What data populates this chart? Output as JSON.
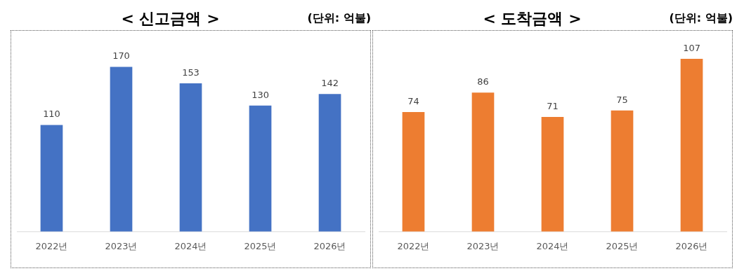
{
  "chart_data": [
    {
      "type": "bar",
      "title": "< 신고금액 >",
      "annotations": [
        "(단위: 억불)"
      ],
      "categories": [
        "2022년",
        "2023년",
        "2024년",
        "2025년",
        "2026년"
      ],
      "values": [
        110,
        170,
        153,
        130,
        142
      ],
      "color": "#4472c4",
      "data_labels": true
    },
    {
      "type": "bar",
      "title": "< 도착금액 >",
      "annotations": [
        "(단위: 억불)"
      ],
      "categories": [
        "2022년",
        "2023년",
        "2024년",
        "2025년",
        "2026년"
      ],
      "values": [
        74,
        86,
        71,
        75,
        107
      ],
      "color": "#ed7d31",
      "data_labels": true
    }
  ]
}
